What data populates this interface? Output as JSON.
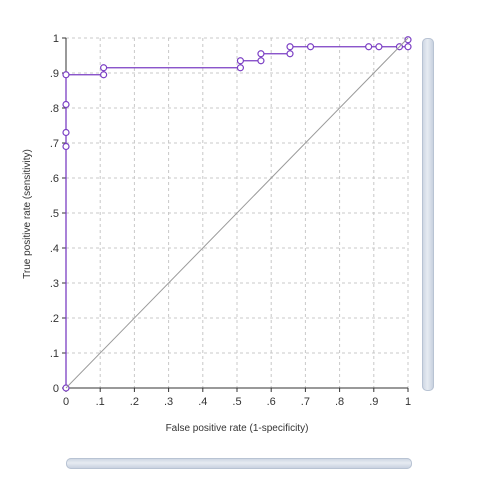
{
  "chart_data": {
    "type": "line",
    "xlabel": "False positive rate (1-specificity)",
    "ylabel": "True positive rate (sensitivity)",
    "xlim": [
      0,
      1
    ],
    "ylim": [
      0,
      1
    ],
    "x_ticks": [
      "0",
      ".1",
      ".2",
      ".3",
      ".4",
      ".5",
      ".6",
      ".7",
      ".8",
      ".9",
      "1"
    ],
    "y_ticks": [
      "0",
      ".1",
      ".2",
      ".3",
      ".4",
      ".5",
      ".6",
      ".7",
      ".8",
      ".9",
      "1"
    ],
    "grid": true,
    "series": [
      {
        "values": [
          [
            0,
            0
          ],
          [
            0,
            0.69
          ],
          [
            0,
            0.73
          ],
          [
            0,
            0.81
          ],
          [
            0,
            0.895
          ],
          [
            0.11,
            0.895
          ],
          [
            0.11,
            0.915
          ],
          [
            0.51,
            0.915
          ],
          [
            0.51,
            0.935
          ],
          [
            0.57,
            0.935
          ],
          [
            0.57,
            0.955
          ],
          [
            0.655,
            0.955
          ],
          [
            0.655,
            0.975
          ],
          [
            0.715,
            0.975
          ],
          [
            0.885,
            0.975
          ],
          [
            0.915,
            0.975
          ],
          [
            0.975,
            0.975
          ],
          [
            1.0,
            0.975
          ],
          [
            1.0,
            0.995
          ]
        ],
        "color": "#7b3fc4"
      },
      {
        "values": [
          [
            0,
            0
          ],
          [
            1,
            1
          ]
        ],
        "color": "#9a9a9a"
      }
    ]
  },
  "colors": {
    "roc_line": "#7b3fc4",
    "reference_line": "#9a9a9a",
    "grid": "#c8c8c8",
    "axis": "#333333"
  }
}
